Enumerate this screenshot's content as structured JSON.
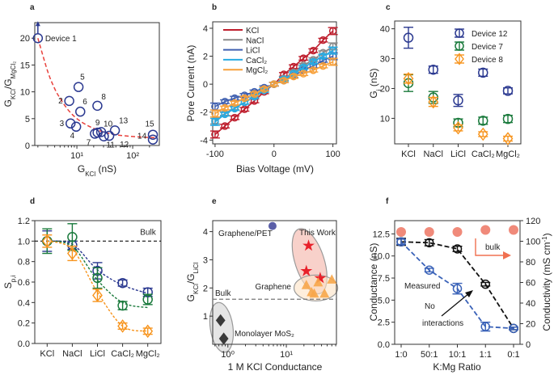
{
  "chart_data": [
    {
      "panel": "a",
      "type": "scatter",
      "xlabel": [
        {
          "t": "G",
          "sub": false
        },
        {
          "t": "KCl",
          "sub": true
        },
        {
          "t": " (nS)",
          "sub": false
        }
      ],
      "ylabel": [
        {
          "t": "G",
          "sub": false
        },
        {
          "t": "KCl",
          "sub": true
        },
        {
          "t": "/G",
          "sub": false
        },
        {
          "t": "MgCl₂",
          "sub": true
        }
      ],
      "xscale": "log",
      "xlim": [
        1.76,
        300
      ],
      "ylim": [
        0,
        22.9
      ],
      "xticks": [
        10,
        100
      ],
      "xtick_labels": [
        "10¹",
        "10²"
      ],
      "yticks": [
        0,
        5,
        10,
        15,
        20
      ],
      "ytick_labels": [
        "0",
        "5",
        "10",
        "15",
        "20"
      ],
      "points": [
        {
          "label": "Device 1",
          "x": 2.0,
          "y": 20.0,
          "arrow_up": true
        },
        {
          "label": "2",
          "x": 7.3,
          "y": 8.3
        },
        {
          "label": "3",
          "x": 7.7,
          "y": 4.1
        },
        {
          "label": "4",
          "x": 9.7,
          "y": 3.5
        },
        {
          "label": "5",
          "x": 10.7,
          "y": 10.9
        },
        {
          "label": "6",
          "x": 11.5,
          "y": 6.3
        },
        {
          "label": "7",
          "x": 21,
          "y": 2.2
        },
        {
          "label": "8",
          "x": 23.3,
          "y": 7.4
        },
        {
          "label": "9",
          "x": 23.5,
          "y": 2.4
        },
        {
          "label": "10",
          "x": 27.2,
          "y": 2.5
        },
        {
          "label": "11",
          "x": 30.4,
          "y": 1.7
        },
        {
          "label": "12",
          "x": 38,
          "y": 1.8
        },
        {
          "label": "13",
          "x": 48,
          "y": 2.8
        },
        {
          "label": "14",
          "x": 230,
          "y": 1.1
        },
        {
          "label": "15",
          "x": 230,
          "y": 2.0
        }
      ],
      "fit": {
        "style": "dashed",
        "color": "#e8413c",
        "x": [
          2,
          3,
          4,
          5,
          7,
          10,
          15,
          20,
          30,
          50,
          100,
          250
        ],
        "y": [
          20,
          13.8,
          10.6,
          8.8,
          6.6,
          5.0,
          3.8,
          3.2,
          2.5,
          2.0,
          1.67,
          1.45
        ]
      },
      "marker_color": "#2b3990"
    },
    {
      "panel": "b",
      "type": "line",
      "xlabel": [
        {
          "t": "Bias Voltage (mV)",
          "sub": false
        }
      ],
      "ylabel": [
        {
          "t": "Pore Current (nA)",
          "sub": false
        }
      ],
      "xlim": [
        -104,
        106
      ],
      "ylim": [
        -4.27,
        4.46
      ],
      "xticks": [
        -100,
        0,
        100
      ],
      "xtick_labels": [
        "-100",
        "0",
        "100"
      ],
      "yticks": [
        -4,
        -2,
        0,
        2,
        4
      ],
      "ytick_labels": [
        "-4",
        "-2",
        "0",
        "2",
        "4"
      ],
      "x": [
        -100,
        -83.3,
        -66.7,
        -50,
        -33.3,
        -16.7,
        0,
        16.7,
        33.3,
        50,
        66.7,
        83.3,
        100
      ],
      "legend": "top-left",
      "series": [
        {
          "name": "KCl",
          "color": "#be1e2d",
          "values": [
            -3.6,
            -3.0,
            -2.4,
            -1.8,
            -1.2,
            -0.55,
            0,
            0.7,
            1.25,
            1.85,
            2.4,
            3.15,
            3.8
          ]
        },
        {
          "name": "NaCl",
          "color": "#8a8a8a",
          "values": [
            -2.6,
            -2.1,
            -1.7,
            -1.3,
            -0.85,
            -0.4,
            0,
            0.4,
            0.85,
            1.35,
            1.75,
            2.25,
            2.7
          ]
        },
        {
          "name": "LiCl",
          "color": "#4060b0",
          "values": [
            -1.6,
            -1.25,
            -1.0,
            -0.8,
            -0.55,
            -0.25,
            0,
            0.25,
            0.6,
            1.0,
            1.3,
            1.7,
            2.0
          ]
        },
        {
          "name": "CaCl₂",
          "color": "#29abe2",
          "values": [
            -2.7,
            -2.15,
            -1.75,
            -1.3,
            -0.9,
            -0.45,
            0,
            0.35,
            0.75,
            1.2,
            1.6,
            2.0,
            2.4
          ]
        },
        {
          "name": "MgCl₂",
          "color": "#f7a03a",
          "values": [
            -2.1,
            -1.7,
            -1.35,
            -1.0,
            -0.7,
            -0.35,
            0,
            0.25,
            0.55,
            0.75,
            1.0,
            1.3,
            1.6
          ]
        }
      ]
    },
    {
      "panel": "c",
      "type": "scatter",
      "xlabel": [],
      "ylabel": [
        {
          "t": "G",
          "sub": false
        },
        {
          "t": "i",
          "sub": true
        },
        {
          "t": " (nS)",
          "sub": false
        }
      ],
      "categories": [
        "KCl",
        "NaCl",
        "LiCl",
        "CaCl₂",
        "MgCl₂"
      ],
      "ylim": [
        1.45,
        42.6
      ],
      "yticks": [
        10,
        20,
        30,
        40
      ],
      "ytick_labels": [
        "10",
        "20",
        "30",
        "40"
      ],
      "legend": "top-right",
      "series": [
        {
          "name": "Device 12",
          "color": "#2b3990",
          "marker": "circle",
          "values": [
            37,
            26.3,
            16,
            25.3,
            19.2
          ],
          "errors": [
            3.5,
            1.2,
            2,
            1.2,
            1
          ]
        },
        {
          "name": "Device 7",
          "color": "#1a7a3c",
          "marker": "circle",
          "values": [
            21.8,
            17,
            8.5,
            9.2,
            9.8
          ],
          "errors": [
            2.8,
            2,
            1.3,
            1.2,
            1.2
          ]
        },
        {
          "name": "Device 8",
          "color": "#f7941d",
          "marker": "diamond",
          "values": [
            23.3,
            15.5,
            6.8,
            4.7,
            3.2
          ],
          "errors": [
            1.5,
            1.5,
            1,
            0.8,
            0.8
          ]
        }
      ]
    },
    {
      "panel": "d",
      "type": "scatter",
      "xlabel": [],
      "ylabel": [
        {
          "t": "S",
          "sub": false
        },
        {
          "t": "p,i",
          "sub": true
        }
      ],
      "categories": [
        "KCl",
        "NaCl",
        "LiCl",
        "CaCl₂",
        "MgCl₂"
      ],
      "ylim": [
        0,
        1.2
      ],
      "yticks": [
        0,
        0.2,
        0.4,
        0.6,
        0.8,
        1.0,
        1.2
      ],
      "ytick_labels": [
        "0.0",
        "0.2",
        "0.4",
        "0.6",
        "0.8",
        "1.0",
        "1.2"
      ],
      "reference_line": {
        "label": "Bulk",
        "y": 1.0
      },
      "series": [
        {
          "color": "#2b3990",
          "marker": "circle",
          "values": [
            1.0,
            0.96,
            0.71,
            0.59,
            0.5
          ],
          "errors": [
            0.1,
            0.04,
            0.08,
            0.03,
            0.04
          ],
          "fit": [
            1.0,
            0.97,
            0.72,
            0.57,
            0.49
          ]
        },
        {
          "color": "#1a7a3c",
          "marker": "circle",
          "values": [
            1.0,
            1.04,
            0.64,
            0.37,
            0.43
          ],
          "errors": [
            0.12,
            0.13,
            0.1,
            0.04,
            0.05
          ],
          "fit": [
            1.0,
            0.95,
            0.62,
            0.4,
            0.35
          ]
        },
        {
          "color": "#f7941d",
          "marker": "diamond",
          "values": [
            1.0,
            0.88,
            0.47,
            0.17,
            0.12
          ],
          "errors": [
            0.06,
            0.07,
            0.06,
            0.03,
            0.03
          ],
          "fit": [
            1.0,
            0.92,
            0.5,
            0.17,
            0.12
          ]
        }
      ]
    },
    {
      "panel": "e",
      "type": "scatter",
      "xlabel": [
        {
          "t": "1 M KCl Conductance",
          "sub": false
        }
      ],
      "ylabel": [
        {
          "t": "G",
          "sub": false
        },
        {
          "t": "KCl",
          "sub": true
        },
        {
          "t": "/G",
          "sub": false
        },
        {
          "t": "LiCl",
          "sub": true
        }
      ],
      "xscale": "log",
      "xlim": [
        0.55,
        72
      ],
      "ylim": [
        0,
        4.39
      ],
      "xticks": [
        1,
        10
      ],
      "xtick_labels": [
        "10⁰",
        "10¹"
      ],
      "yticks": [
        1,
        2,
        3,
        4
      ],
      "ytick_labels": [
        "1",
        "2",
        "3",
        "4"
      ],
      "reference_line": {
        "label": "Bulk",
        "y": 1.6
      },
      "groups": [
        {
          "name": "Graphene/PET",
          "marker": "filled-circle",
          "color": "#5b5fa8",
          "points": [
            [
              5.8,
              4.2
            ]
          ]
        },
        {
          "name": "This Work",
          "marker": "star",
          "color": "#e8202a",
          "points": [
            [
              24,
              3.5
            ],
            [
              22,
              2.6
            ],
            [
              38,
              2.35
            ]
          ]
        },
        {
          "name": "Graphene",
          "marker": "triangle",
          "color": "#f7a64a",
          "points": [
            [
              22,
              2.1
            ],
            [
              27,
              1.85
            ],
            [
              30,
              1.8
            ],
            [
              45,
              1.8
            ],
            [
              35,
              2.2
            ],
            [
              60,
              2.3
            ]
          ]
        },
        {
          "name": "Monolayer MoS₂",
          "marker": "diamond-filled",
          "color": "#3a3a3a",
          "points": [
            [
              0.75,
              0.85
            ],
            [
              0.85,
              0.2
            ]
          ]
        }
      ]
    },
    {
      "panel": "f",
      "type": "line",
      "xlabel": [
        {
          "t": "K:Mg Ratio",
          "sub": false
        }
      ],
      "ylabel": [
        {
          "t": "Conductance (nS)",
          "sub": false
        }
      ],
      "ylabel_right": [
        {
          "t": "Conductivity (mS cm",
          "sub": false
        },
        {
          "t": "-1",
          "sup": true
        },
        {
          "t": ")",
          "sub": false
        }
      ],
      "categories": [
        "1:0",
        "50:1",
        "10:1",
        "1:1",
        "0:1"
      ],
      "ylim": [
        0,
        14
      ],
      "ylim_right": [
        0,
        120
      ],
      "yticks": [
        0,
        2.5,
        5,
        7.5,
        10,
        12.5
      ],
      "ytick_labels": [
        "0.0",
        "2.5",
        "5.0",
        "7.5",
        "10.0",
        "12.5"
      ],
      "yticks_right": [
        0,
        20,
        40,
        60,
        80,
        100,
        120
      ],
      "ytick_labels_right": [
        "0",
        "20",
        "40",
        "60",
        "80",
        "100",
        "120"
      ],
      "series": [
        {
          "name": "bulk",
          "axis": "right",
          "color": "#f08a7a",
          "marker": "filled-circle",
          "values": [
            109,
            109,
            109,
            111,
            111
          ]
        },
        {
          "name": "No interactions",
          "axis": "left",
          "color": "#111111",
          "marker": "circle",
          "values": [
            11.6,
            11.5,
            10.8,
            6.8,
            1.8
          ],
          "errors": [
            0.4,
            0.35,
            0.3,
            0.2,
            0.15
          ]
        },
        {
          "name": "Measured",
          "axis": "left",
          "color": "#3a62b8",
          "marker": "circle",
          "values": [
            11.6,
            8.4,
            6.3,
            2.0,
            1.8
          ],
          "errors": [
            0.3,
            0.2,
            0.6,
            0.5,
            0.15
          ]
        }
      ],
      "annotations": {
        "measured": "Measured",
        "no": "No",
        "interactions": "interactions",
        "bulk": "bulk"
      }
    }
  ],
  "panel_letters": [
    "a",
    "b",
    "c",
    "d",
    "e",
    "f"
  ]
}
